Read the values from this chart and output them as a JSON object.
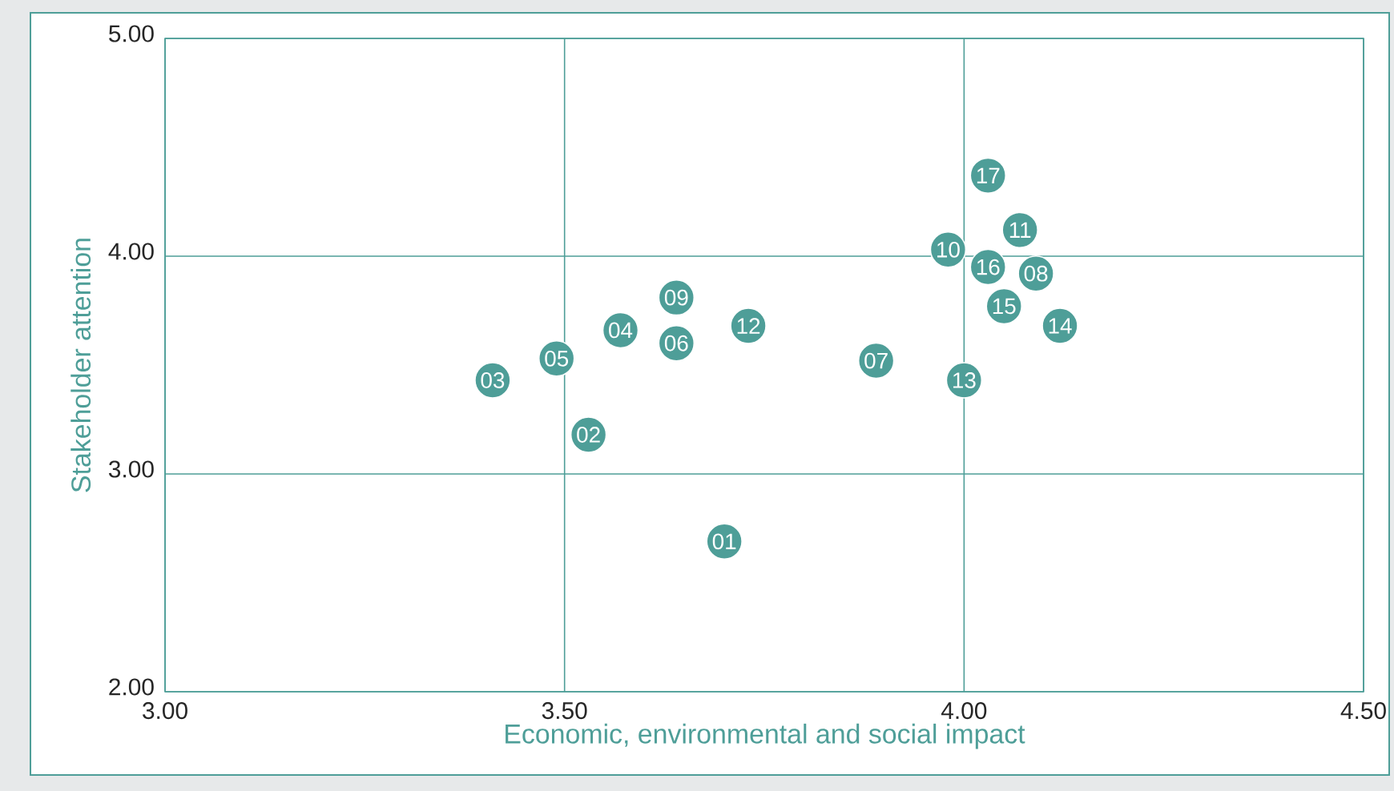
{
  "chart_data": {
    "type": "scatter",
    "xlabel": "Economic, environmental and social impact",
    "ylabel": "Stakeholder attention",
    "x": [
      3.7,
      3.53,
      3.41,
      3.57,
      3.49,
      3.64,
      3.89,
      4.09,
      3.64,
      3.98,
      4.07,
      3.73,
      4.0,
      4.12,
      4.05,
      4.03,
      4.03
    ],
    "values": [
      2.69,
      3.18,
      3.43,
      3.66,
      3.53,
      3.6,
      3.52,
      3.92,
      3.81,
      4.03,
      4.12,
      3.68,
      3.43,
      3.68,
      3.77,
      3.95,
      4.37
    ],
    "color": "#4e9e98",
    "marker": "circle",
    "grid": true,
    "xlim": [
      3,
      4.5
    ],
    "ylim": [
      2,
      5
    ],
    "xticks": [
      {
        "value": 3,
        "label": "3.00"
      },
      {
        "value": 3.5,
        "label": "3.50"
      },
      {
        "value": 4,
        "label": "4.00"
      },
      {
        "value": 4.5,
        "label": "4.50"
      }
    ],
    "yticks": [
      {
        "value": 2,
        "label": "2.00"
      },
      {
        "value": 3,
        "label": "3.00"
      },
      {
        "value": 4,
        "label": "4.00"
      },
      {
        "value": 5,
        "label": "5.00"
      }
    ],
    "annotations": [
      {
        "text": "01",
        "x": 3.7,
        "y": 2.69
      },
      {
        "text": "02",
        "x": 3.53,
        "y": 3.18
      },
      {
        "text": "03",
        "x": 3.41,
        "y": 3.43
      },
      {
        "text": "04",
        "x": 3.57,
        "y": 3.66
      },
      {
        "text": "05",
        "x": 3.49,
        "y": 3.53
      },
      {
        "text": "06",
        "x": 3.64,
        "y": 3.6
      },
      {
        "text": "07",
        "x": 3.89,
        "y": 3.52
      },
      {
        "text": "08",
        "x": 4.09,
        "y": 3.92
      },
      {
        "text": "09",
        "x": 3.64,
        "y": 3.81
      },
      {
        "text": "10",
        "x": 3.98,
        "y": 4.03
      },
      {
        "text": "11",
        "x": 4.07,
        "y": 4.12
      },
      {
        "text": "12",
        "x": 3.73,
        "y": 3.68
      },
      {
        "text": "13",
        "x": 4.0,
        "y": 3.43
      },
      {
        "text": "14",
        "x": 4.12,
        "y": 3.68
      },
      {
        "text": "15",
        "x": 4.05,
        "y": 3.77
      },
      {
        "text": "16",
        "x": 4.03,
        "y": 3.95
      },
      {
        "text": "17",
        "x": 4.03,
        "y": 4.37
      }
    ]
  }
}
